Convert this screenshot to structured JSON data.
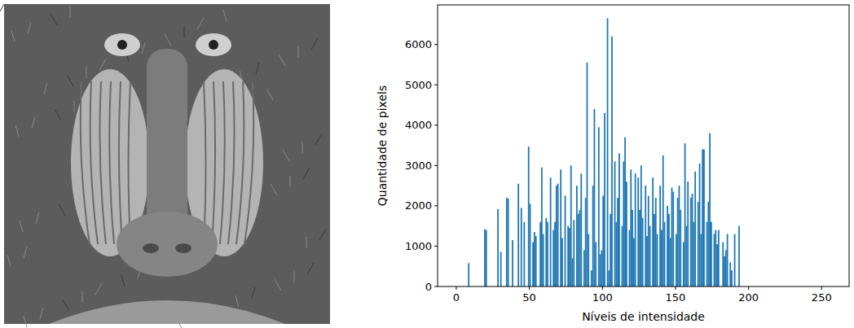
{
  "chart_data": {
    "type": "histogram",
    "x_label": "Níveis de intensidade",
    "y_label": "Quantidade de pixels",
    "bins": [
      0,
      1,
      2,
      3,
      4,
      5,
      6,
      7,
      8,
      9,
      10,
      11,
      12,
      13,
      14,
      15,
      16,
      17,
      18,
      19,
      20,
      21,
      22,
      23,
      24,
      25,
      26,
      27,
      28,
      29,
      30,
      31,
      32,
      33,
      34,
      35,
      36,
      37,
      38,
      39,
      40,
      41,
      42,
      43,
      44,
      45,
      46,
      47,
      48,
      49,
      50,
      51,
      52,
      53,
      54,
      55,
      56,
      57,
      58,
      59,
      60,
      61,
      62,
      63,
      64,
      65,
      66,
      67,
      68,
      69,
      70,
      71,
      72,
      73,
      74,
      75,
      76,
      77,
      78,
      79,
      80,
      81,
      82,
      83,
      84,
      85,
      86,
      87,
      88,
      89,
      90,
      91,
      92,
      93,
      94,
      95,
      96,
      97,
      98,
      99,
      100,
      101,
      102,
      103,
      104,
      105,
      106,
      107,
      108,
      109,
      110,
      111,
      112,
      113,
      114,
      115,
      116,
      117,
      118,
      119,
      120,
      121,
      122,
      123,
      124,
      125,
      126,
      127,
      128,
      129,
      130,
      131,
      132,
      133,
      134,
      135,
      136,
      137,
      138,
      139,
      140,
      141,
      142,
      143,
      144,
      145,
      146,
      147,
      148,
      149,
      150,
      151,
      152,
      153,
      154,
      155,
      156,
      157,
      158,
      159,
      160,
      161,
      162,
      163,
      164,
      165,
      166,
      167,
      168,
      169,
      170,
      171,
      172,
      173,
      174,
      175,
      176,
      177,
      178,
      179,
      180,
      181,
      182,
      183,
      184,
      185,
      186,
      187,
      188,
      189,
      190,
      191,
      192,
      193,
      194,
      195,
      196,
      197,
      198,
      199,
      200,
      201,
      202,
      203,
      204,
      205,
      206,
      207,
      208,
      209,
      210,
      211,
      212,
      213,
      214,
      215,
      216,
      217,
      218,
      219,
      220,
      221,
      222,
      223,
      224,
      225,
      226,
      227,
      228,
      229,
      230,
      231,
      232,
      233,
      234,
      235,
      236,
      237,
      238,
      239,
      240,
      241,
      242,
      243,
      244,
      245,
      246,
      247,
      248,
      249,
      250,
      251,
      252,
      253,
      254,
      255,
      256
    ],
    "values": [
      0,
      0,
      0,
      0,
      0,
      0,
      0,
      0,
      580,
      0,
      0,
      0,
      0,
      0,
      0,
      0,
      0,
      0,
      0,
      1420,
      1400,
      0,
      0,
      0,
      0,
      0,
      0,
      0,
      1920,
      0,
      860,
      0,
      0,
      0,
      2200,
      2180,
      0,
      0,
      1150,
      0,
      0,
      0,
      2550,
      0,
      1950,
      0,
      1600,
      0,
      0,
      3470,
      2050,
      0,
      1100,
      1350,
      1250,
      0,
      0,
      1600,
      2950,
      1300,
      0,
      1700,
      1600,
      0,
      2700,
      0,
      1400,
      1600,
      2500,
      2550,
      0,
      2900,
      1200,
      0,
      2250,
      0,
      1500,
      1450,
      3000,
      700,
      1650,
      0,
      2500,
      1800,
      1900,
      2800,
      0,
      900,
      2200,
      5550,
      1300,
      0,
      400,
      2500,
      4400,
      1100,
      0,
      3950,
      800,
      900,
      2250,
      4300,
      0,
      6650,
      400,
      1800,
      6200,
      0,
      3100,
      1600,
      2200,
      3300,
      0,
      1500,
      3100,
      3700,
      2600,
      0,
      1400,
      2900,
      1900,
      1200,
      2800,
      0,
      2700,
      1900,
      3000,
      1700,
      0,
      2500,
      1250,
      2250,
      1500,
      0,
      2700,
      1800,
      2200,
      1300,
      0,
      2500,
      1400,
      3250,
      1600,
      0,
      2000,
      1800,
      1200,
      2450,
      2350,
      0,
      1300,
      2200,
      2500,
      1900,
      0,
      1100,
      3550,
      1500,
      2600,
      0,
      2200,
      2300,
      1600,
      2850,
      0,
      2100,
      3050,
      1300,
      3400,
      3400,
      0,
      1600,
      2100,
      3800,
      1600,
      0,
      1300,
      1400,
      1050,
      1400,
      0,
      0,
      1100,
      750,
      900,
      1300,
      0,
      600,
      400,
      0,
      1300,
      0,
      0,
      1500,
      0,
      0,
      0,
      0,
      0,
      0,
      0,
      0,
      0,
      0,
      0,
      0,
      0,
      0,
      0,
      0,
      0,
      0,
      0,
      0,
      0,
      0,
      0,
      0,
      0,
      0,
      0,
      0,
      0,
      0,
      0,
      0,
      0,
      0,
      0,
      0,
      0,
      0,
      0,
      0,
      0,
      0,
      0,
      0,
      0,
      0,
      0,
      0,
      0,
      0,
      0,
      0,
      0,
      0,
      0,
      0,
      0,
      0,
      0,
      0,
      0,
      0
    ],
    "color": "#1f77b4",
    "xlim": [
      -12.8,
      268.8
    ],
    "ylim": [
      0,
      6982
    ],
    "xticks": [
      0,
      50,
      100,
      150,
      200,
      250
    ],
    "yticks": [
      0,
      1000,
      2000,
      3000,
      4000,
      5000,
      6000
    ]
  }
}
